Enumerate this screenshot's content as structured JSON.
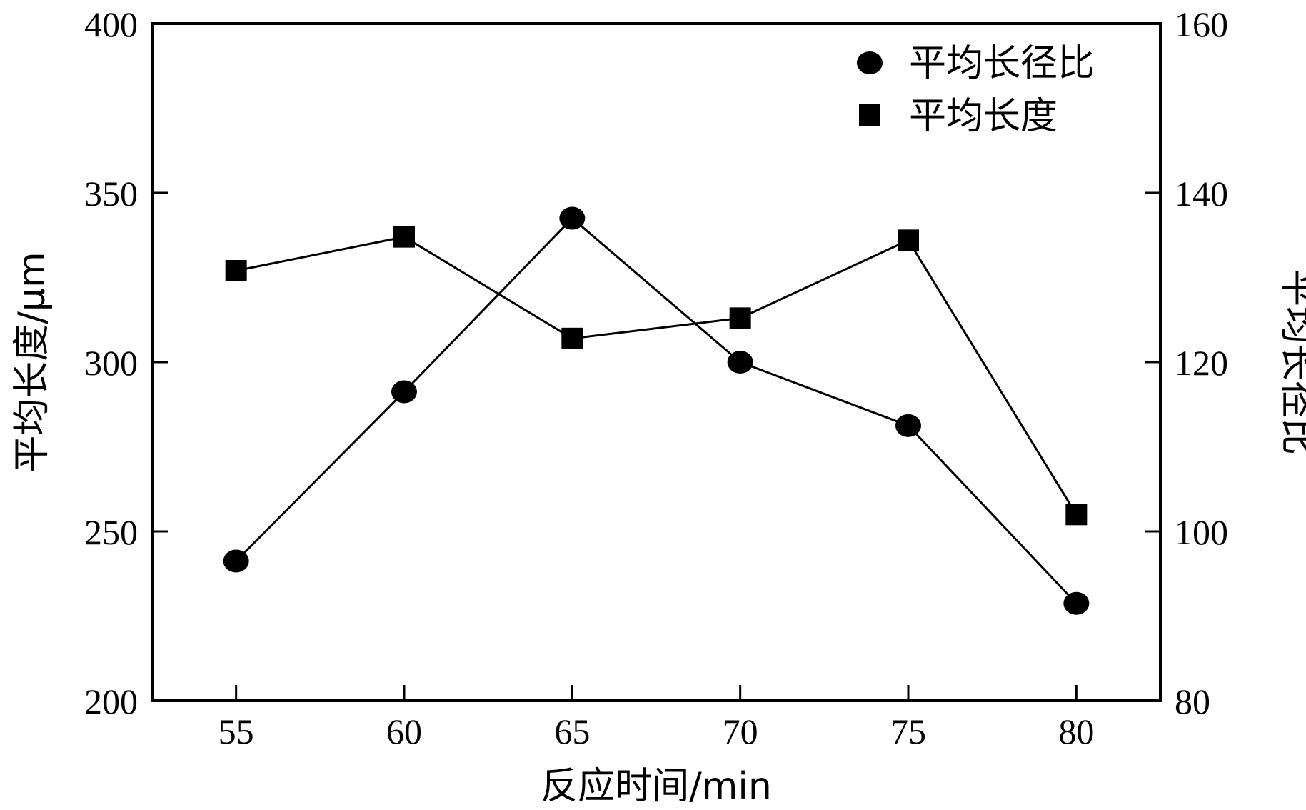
{
  "chart_data": {
    "type": "line",
    "x": [
      55,
      60,
      65,
      70,
      75,
      80
    ],
    "xlabel": "反应时间/min",
    "ylabel_left": "平均长度/μm",
    "ylabel_right": "平均长径比",
    "ylim_left": [
      200,
      400
    ],
    "ylim_right": [
      80,
      160
    ],
    "xlim": [
      52.5,
      82.5
    ],
    "x_ticks": [
      "55",
      "60",
      "65",
      "70",
      "75",
      "80"
    ],
    "y_ticks_left": [
      "200",
      "250",
      "300",
      "350",
      "400"
    ],
    "y_ticks_right": [
      "80",
      "100",
      "120",
      "140",
      "160"
    ],
    "grid": false,
    "legend_position": "top-right",
    "series": [
      {
        "name": "平均长径比",
        "marker": "circle",
        "axis": "right",
        "values": [
          96.5,
          116.5,
          137,
          120,
          112.5,
          91.5
        ]
      },
      {
        "name": "平均长度",
        "marker": "square",
        "axis": "left",
        "values": [
          327,
          337,
          307,
          313,
          336,
          255
        ]
      }
    ]
  }
}
